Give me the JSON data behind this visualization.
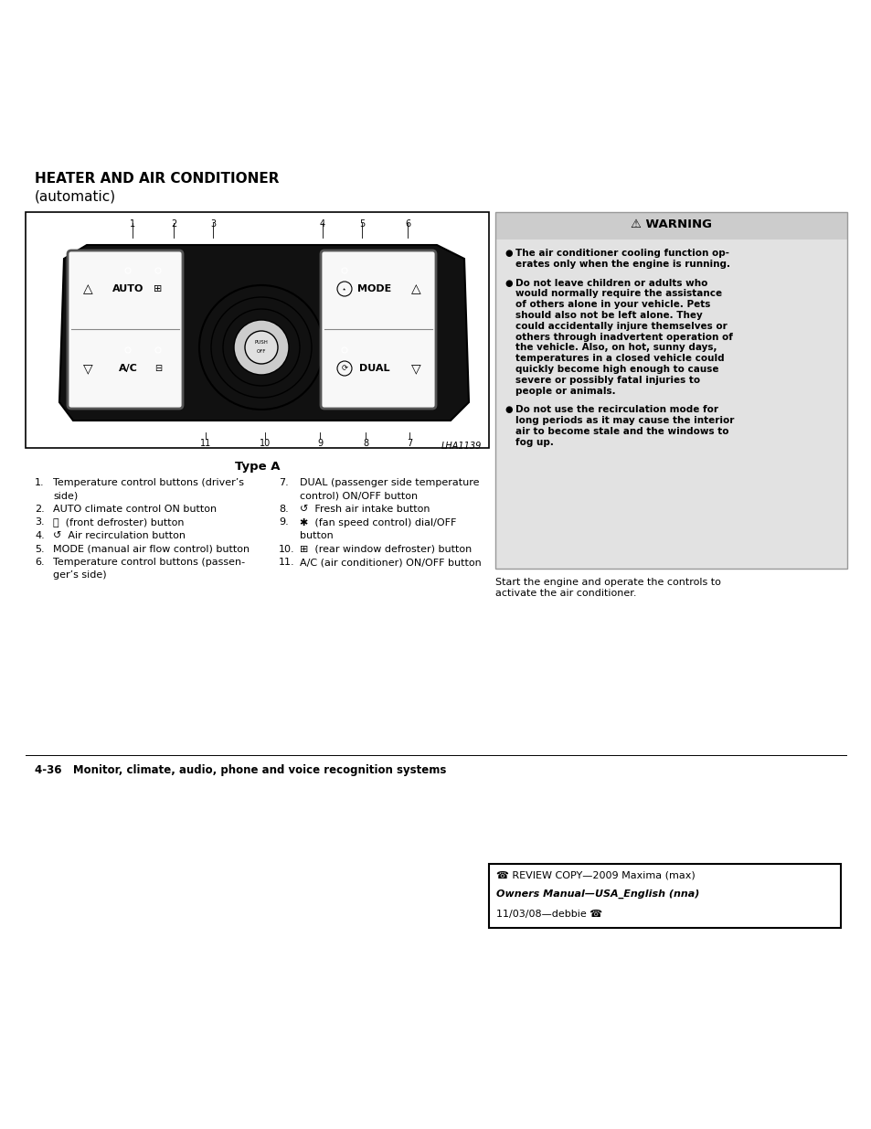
{
  "bg_color": "#ffffff",
  "page_title_line1": "HEATER AND AIR CONDITIONER",
  "page_title_line2": "(automatic)",
  "diagram_label": "Type A",
  "diagram_caption": "LHA1139",
  "list_items_left": [
    [
      "1.",
      "Temperature control buttons (driver’s",
      "side)"
    ],
    [
      "2.",
      "AUTO climate control ON button",
      ""
    ],
    [
      "3.",
      "Ⓝ  (front defroster) button",
      ""
    ],
    [
      "4.",
      "↺  Air recirculation button",
      ""
    ],
    [
      "5.",
      "MODE (manual air flow control) button",
      ""
    ],
    [
      "6.",
      "Temperature control buttons (passen-",
      "ger’s side)"
    ]
  ],
  "list_items_right": [
    [
      "7.",
      "DUAL (passenger side temperature",
      "control) ON/OFF button"
    ],
    [
      "8.",
      "↺  Fresh air intake button",
      ""
    ],
    [
      "9.",
      "✱  (fan speed control) dial/OFF",
      "button"
    ],
    [
      "10.",
      "⊞  (rear window defroster) button",
      ""
    ],
    [
      "11.",
      "A/C (air conditioner) ON/OFF button",
      ""
    ]
  ],
  "warning_title": "⚠ WARNING",
  "warning_bullets_bold": [
    "The air conditioner cooling function op-\nerates only when the engine is running.",
    "Do not leave children or adults who\nwould normally require the assistance\nof others alone in your vehicle. Pets\nshould also not be left alone. They\ncould accidentally injure themselves or\nothers through inadvertent operation of\nthe vehicle. Also, on hot, sunny days,\ntemperatures in a closed vehicle could\nquickly become high enough to cause\nsevere or possibly fatal injuries to\npeople or animals.",
    "Do not use the recirculation mode for\nlong periods as it may cause the interior\nair to become stale and the windows to\nfog up."
  ],
  "start_engine_text": "Start the engine and operate the controls to\nactivate the air conditioner.",
  "footer_text": "4-36   Monitor, climate, audio, phone and voice recognition systems",
  "review_line1": "☎ REVIEW COPY—2009 Maxima (max)",
  "review_line2": "Owners Manual—USA_English (nna)",
  "review_line3": "11/03/08—debbie ☎"
}
